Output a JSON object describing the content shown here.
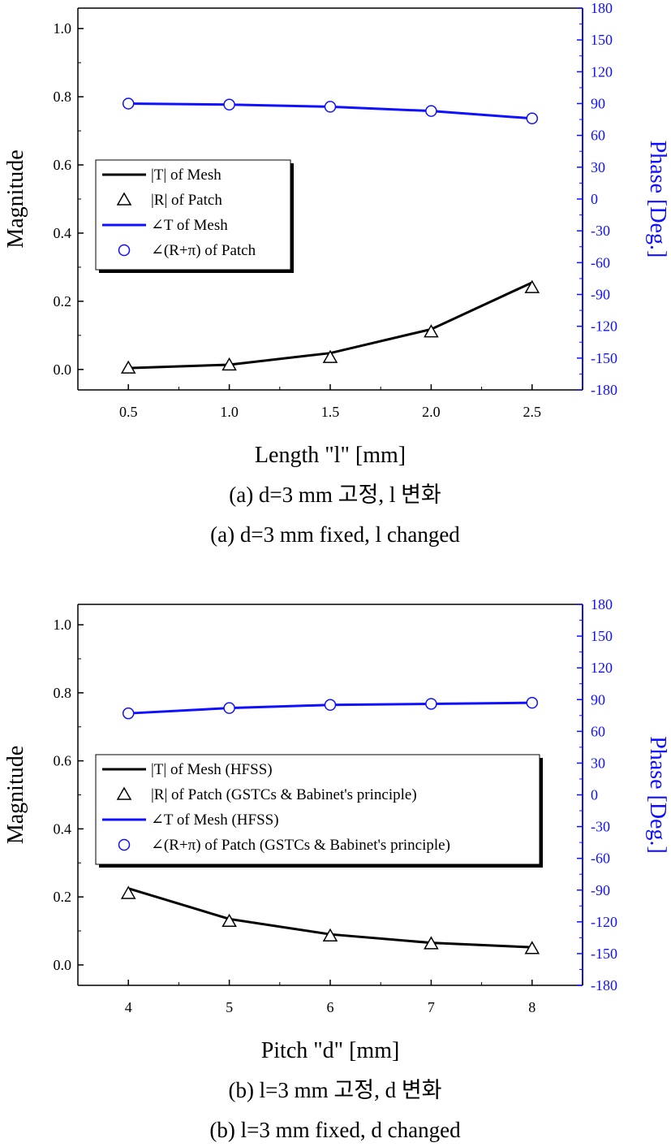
{
  "charts": [
    {
      "chart_data": {
        "type": "line",
        "x": [
          0.5,
          1.0,
          1.5,
          2.0,
          2.5
        ],
        "xlim": [
          0.25,
          2.75
        ],
        "ylim": [
          -0.06,
          1.06
        ],
        "y2lim": [
          -180,
          180
        ],
        "xticks": [
          "0.5",
          "1.0",
          "1.5",
          "2.0",
          "2.5"
        ],
        "yticks": [
          "0.0",
          "0.2",
          "0.4",
          "0.6",
          "0.8",
          "1.0"
        ],
        "y2ticks": [
          "-180",
          "-150",
          "-120",
          "-90",
          "-60",
          "-30",
          "0",
          "30",
          "60",
          "90",
          "120",
          "150",
          "180"
        ],
        "xlabel": "Length \"l\" [mm]",
        "ylabel": "Magnitude",
        "y2label": "Phase [Deg.]",
        "series": [
          {
            "name": "|T| of Mesh",
            "axis": "left",
            "style": "line",
            "color": "#000000",
            "values": [
              0.004,
              0.014,
              0.048,
              0.118,
              0.255
            ]
          },
          {
            "name": "|R| of Patch",
            "axis": "left",
            "style": "triangle",
            "color": "#000000",
            "values": [
              0.004,
              0.013,
              0.035,
              0.11,
              0.24
            ]
          },
          {
            "name": "∠T of Mesh",
            "axis": "right",
            "style": "line",
            "color": "#1010ff",
            "values": [
              90,
              89,
              87,
              83,
              76
            ]
          },
          {
            "name": "∠(R+π) of Patch",
            "axis": "right",
            "style": "circle",
            "color": "#1010ff",
            "values": [
              90,
              89,
              87,
              83,
              76
            ]
          }
        ],
        "legend_position": "center-left"
      },
      "caption_ko": "(a) d=3 mm 고정, l 변화",
      "caption_en": "(a) d=3 mm fixed, l changed"
    },
    {
      "chart_data": {
        "type": "line",
        "x": [
          4,
          5,
          6,
          7,
          8
        ],
        "xlim": [
          3.5,
          8.5
        ],
        "ylim": [
          -0.06,
          1.06
        ],
        "y2lim": [
          -180,
          180
        ],
        "xticks": [
          "4",
          "5",
          "6",
          "7",
          "8"
        ],
        "yticks": [
          "0.0",
          "0.2",
          "0.4",
          "0.6",
          "0.8",
          "1.0"
        ],
        "y2ticks": [
          "-180",
          "-150",
          "-120",
          "-90",
          "-60",
          "-30",
          "0",
          "30",
          "60",
          "90",
          "120",
          "150",
          "180"
        ],
        "xlabel": "Pitch \"d\" [mm]",
        "ylabel": "Magnitude",
        "y2label": "Phase [Deg.]",
        "series": [
          {
            "name": "|T| of Mesh (HFSS)",
            "axis": "left",
            "style": "line",
            "color": "#000000",
            "values": [
              0.225,
              0.135,
              0.09,
              0.065,
              0.052
            ]
          },
          {
            "name": "|R| of Patch (GSTCs & Babinet's principle)",
            "axis": "left",
            "style": "triangle",
            "color": "#000000",
            "values": [
              0.21,
              0.128,
              0.085,
              0.062,
              0.048
            ]
          },
          {
            "name": "∠T of Mesh (HFSS)",
            "axis": "right",
            "style": "line",
            "color": "#1010ff",
            "values": [
              77,
              82,
              85,
              86,
              87
            ]
          },
          {
            "name": "∠(R+π) of Patch (GSTCs & Babinet's principle)",
            "axis": "right",
            "style": "circle",
            "color": "#1010ff",
            "values": [
              77,
              82,
              85,
              86,
              87
            ]
          }
        ],
        "legend_position": "center-left"
      },
      "caption_ko": "(b) l=3 mm 고정, d 변화",
      "caption_en": "(b) l=3 mm fixed, d changed"
    }
  ]
}
